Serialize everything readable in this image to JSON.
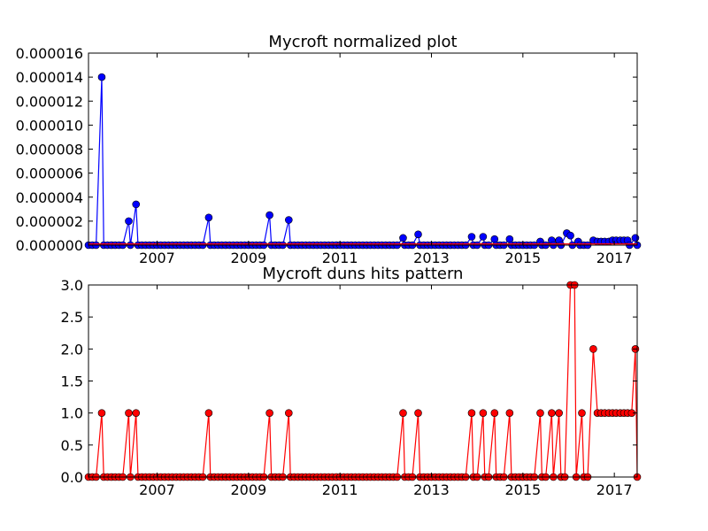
{
  "chart_data": [
    {
      "type": "line",
      "title": "Mycroft normalized plot",
      "xlabel": "",
      "ylabel": "",
      "x_tick_labels": [
        "2007",
        "2009",
        "2011",
        "2013",
        "2015",
        "2017"
      ],
      "x_ticks": [
        2007,
        2009,
        2011,
        2013,
        2015,
        2017
      ],
      "y_tick_labels": [
        "0.000000",
        "0.000002",
        "0.000004",
        "0.000006",
        "0.000008",
        "0.000010",
        "0.000012",
        "0.000014",
        "0.000016"
      ],
      "y_ticks": [
        0,
        2e-06,
        4e-06,
        6e-06,
        8e-06,
        1e-05,
        1.2e-05,
        1.4e-05,
        1.6e-05
      ],
      "xlim": [
        2005.5,
        2017.5
      ],
      "ylim": [
        0,
        1.6e-05
      ],
      "grid": false,
      "series": [
        {
          "color": "#0000ff",
          "marker": "circle",
          "points": [
            [
              2005.79,
              1.4e-05
            ],
            [
              2006.38,
              2e-06
            ],
            [
              2006.54,
              3.4e-06
            ],
            [
              2008.13,
              2.3e-06
            ],
            [
              2009.46,
              2.5e-06
            ],
            [
              2009.88,
              2.1e-06
            ],
            [
              2012.38,
              6e-07
            ],
            [
              2012.71,
              9e-07
            ],
            [
              2013.88,
              7e-07
            ],
            [
              2014.13,
              7e-07
            ],
            [
              2014.38,
              5e-07
            ],
            [
              2014.71,
              5e-07
            ],
            [
              2015.38,
              3e-07
            ],
            [
              2015.63,
              4e-07
            ],
            [
              2015.79,
              4e-07
            ],
            [
              2015.96,
              1e-06
            ],
            [
              2016.04,
              8e-07
            ],
            [
              2016.21,
              3e-07
            ],
            [
              2016.54,
              4e-07
            ],
            [
              2016.63,
              3e-07
            ],
            [
              2016.71,
              3e-07
            ],
            [
              2016.79,
              3e-07
            ],
            [
              2016.88,
              3e-07
            ],
            [
              2016.96,
              4e-07
            ],
            [
              2017.04,
              4e-07
            ],
            [
              2017.13,
              4e-07
            ],
            [
              2017.21,
              4e-07
            ],
            [
              2017.29,
              4e-07
            ],
            [
              2017.46,
              6e-07
            ]
          ]
        },
        {
          "color": "#ff0000",
          "marker": "none",
          "points": [
            [
              2005.5,
              1e-07
            ],
            [
              2017.5,
              1e-07
            ]
          ]
        }
      ]
    },
    {
      "type": "line",
      "title": "Mycroft duns hits pattern",
      "xlabel": "",
      "ylabel": "",
      "x_tick_labels": [
        "2007",
        "2009",
        "2011",
        "2013",
        "2015",
        "2017"
      ],
      "x_ticks": [
        2007,
        2009,
        2011,
        2013,
        2015,
        2017
      ],
      "y_tick_labels": [
        "0.0",
        "0.5",
        "1.0",
        "1.5",
        "2.0",
        "2.5",
        "3.0"
      ],
      "y_ticks": [
        0,
        0.5,
        1,
        1.5,
        2,
        2.5,
        3
      ],
      "xlim": [
        2005.5,
        2017.5
      ],
      "ylim": [
        0,
        3
      ],
      "grid": false,
      "series": [
        {
          "color": "#ff0000",
          "marker": "circle",
          "points": [
            [
              2005.79,
              1
            ],
            [
              2006.38,
              1
            ],
            [
              2006.54,
              1
            ],
            [
              2008.13,
              1
            ],
            [
              2009.46,
              1
            ],
            [
              2009.88,
              1
            ],
            [
              2012.38,
              1
            ],
            [
              2012.71,
              1
            ],
            [
              2013.88,
              1
            ],
            [
              2014.13,
              1
            ],
            [
              2014.38,
              1
            ],
            [
              2014.71,
              1
            ],
            [
              2015.38,
              1
            ],
            [
              2015.63,
              1
            ],
            [
              2015.79,
              1
            ],
            [
              2016.04,
              3
            ],
            [
              2016.13,
              3
            ],
            [
              2016.29,
              1
            ],
            [
              2016.54,
              2
            ],
            [
              2016.63,
              1
            ],
            [
              2016.71,
              1
            ],
            [
              2016.79,
              1
            ],
            [
              2016.88,
              1
            ],
            [
              2016.96,
              1
            ],
            [
              2017.04,
              1
            ],
            [
              2017.13,
              1
            ],
            [
              2017.21,
              1
            ],
            [
              2017.29,
              1
            ],
            [
              2017.38,
              1
            ],
            [
              2017.46,
              2
            ]
          ]
        }
      ]
    }
  ]
}
